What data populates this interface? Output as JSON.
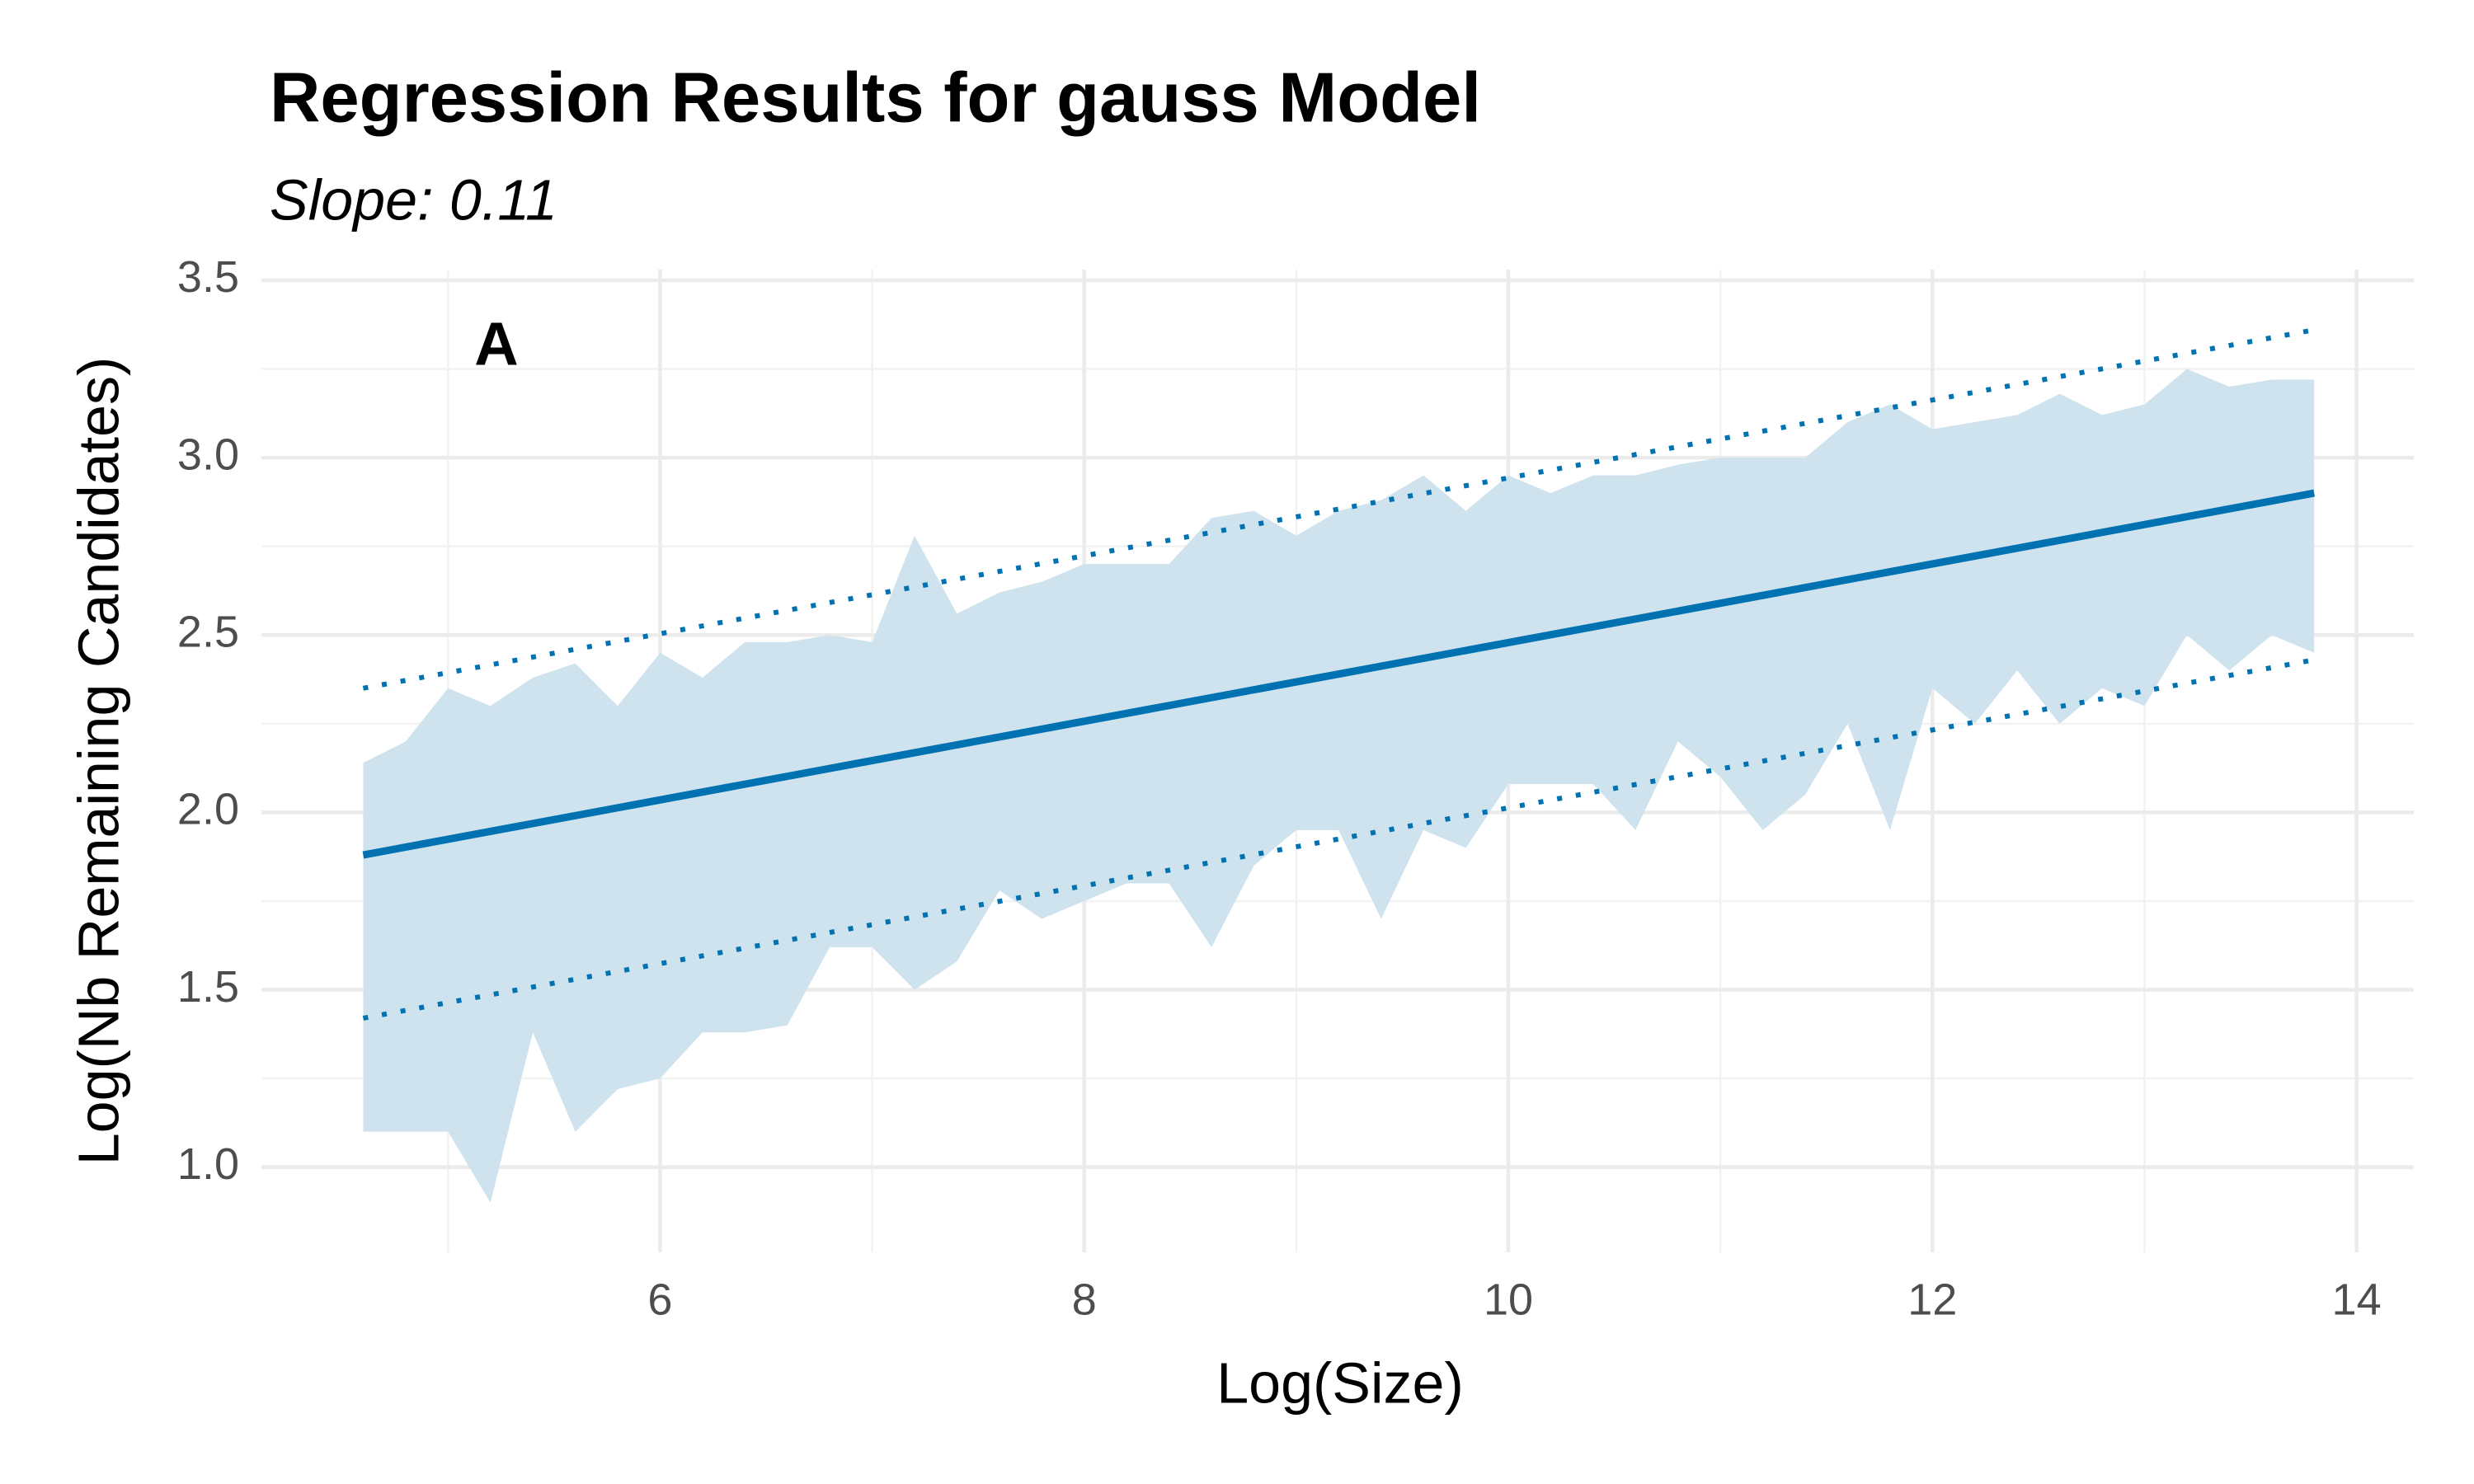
{
  "chart_data": {
    "type": "line",
    "title": "Regression Results for gauss Model",
    "subtitle": "Slope: 0.11",
    "x_label": "Log(Size)",
    "y_label": "Log(Nb Remaining Candidates)",
    "annotation": "A",
    "xlim": [
      4.12,
      14.27
    ],
    "ylim": [
      0.76,
      3.53
    ],
    "xticks": [
      6,
      8,
      10,
      12,
      14
    ],
    "yticks": [
      {
        "value": 1,
        "label": "1.0"
      },
      1.5,
      {
        "value": 2,
        "label": "2.0"
      },
      2.5,
      {
        "value": 3,
        "label": "3.0"
      },
      3.5
    ],
    "grid": true,
    "minor_grid": true,
    "band": {
      "color": "#cfe3ef",
      "x": [
        4.6,
        4.8,
        5.0,
        5.2,
        5.4,
        5.6,
        5.8,
        6.0,
        6.2,
        6.4,
        6.6,
        6.8,
        7.0,
        7.2,
        7.4,
        7.6,
        7.8,
        8.0,
        8.2,
        8.4,
        8.6,
        8.8,
        9.0,
        9.2,
        9.4,
        9.6,
        9.8,
        10.0,
        10.2,
        10.4,
        10.6,
        10.8,
        11.0,
        11.2,
        11.4,
        11.6,
        11.8,
        12.0,
        12.2,
        12.4,
        12.6,
        12.8,
        13.0,
        13.2,
        13.4,
        13.6,
        13.8
      ],
      "lower": [
        1.1,
        1.1,
        1.1,
        0.9,
        1.38,
        1.1,
        1.22,
        1.25,
        1.38,
        1.38,
        1.4,
        1.62,
        1.62,
        1.5,
        1.58,
        1.78,
        1.7,
        1.75,
        1.8,
        1.8,
        1.62,
        1.85,
        1.95,
        1.95,
        1.7,
        1.95,
        1.9,
        2.08,
        2.08,
        2.08,
        1.95,
        2.2,
        2.1,
        1.95,
        2.05,
        2.25,
        1.95,
        2.35,
        2.25,
        2.4,
        2.25,
        2.35,
        2.3,
        2.5,
        2.4,
        2.5,
        2.45
      ],
      "upper": [
        2.14,
        2.2,
        2.35,
        2.3,
        2.38,
        2.42,
        2.3,
        2.45,
        2.38,
        2.48,
        2.48,
        2.5,
        2.48,
        2.78,
        2.56,
        2.62,
        2.65,
        2.7,
        2.7,
        2.7,
        2.83,
        2.85,
        2.78,
        2.85,
        2.88,
        2.95,
        2.85,
        2.95,
        2.9,
        2.95,
        2.95,
        2.98,
        3.0,
        3.0,
        3.0,
        3.1,
        3.15,
        3.08,
        3.1,
        3.12,
        3.18,
        3.12,
        3.15,
        3.25,
        3.2,
        3.22,
        3.22
      ]
    },
    "lines": [
      {
        "x": [
          4.6,
          13.8
        ],
        "values": [
          1.88,
          2.9
        ],
        "color": "#0072b2",
        "style": "solid"
      },
      {
        "x": [
          4.6,
          13.8
        ],
        "values": [
          2.35,
          3.36
        ],
        "color": "#0072b2",
        "style": "dotted"
      },
      {
        "x": [
          4.6,
          13.8
        ],
        "values": [
          1.42,
          2.43
        ],
        "color": "#0072b2",
        "style": "dotted"
      }
    ]
  }
}
